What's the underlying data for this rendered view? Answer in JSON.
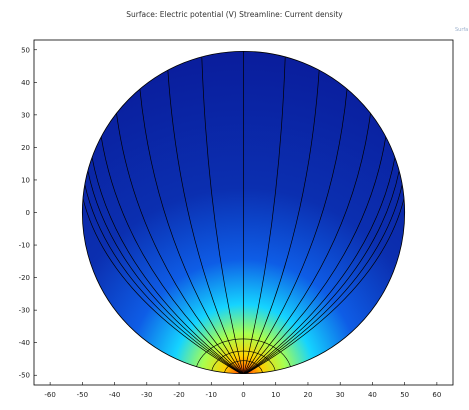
{
  "plot": {
    "title": "Surface: Electric potential (V)  Streamline: Current density",
    "legend_stub": "Surfa",
    "colors": {
      "domain_fill": "#0a1d9c",
      "frame": "#000000",
      "streamline": "#000000"
    }
  },
  "chart_data": {
    "type": "heatmap",
    "title": "Surface: Electric potential (V)  Streamline: Current density",
    "surface_field": "Electric potential (V)",
    "streamline_field": "Current density",
    "domain": {
      "shape": "circle",
      "center": [
        0,
        0
      ],
      "radius": 50
    },
    "source": {
      "x": 0,
      "y": -50,
      "note": "hot spot at bottom of circle"
    },
    "xlim": [
      -65,
      65
    ],
    "ylim": [
      -53,
      53
    ],
    "x_ticks": [
      -60,
      -50,
      -40,
      -30,
      -20,
      -10,
      0,
      10,
      20,
      30,
      40,
      50,
      60
    ],
    "y_ticks": [
      50,
      40,
      30,
      20,
      10,
      0,
      -10,
      -20,
      -30,
      -40,
      -50
    ],
    "x_tick_labels": [
      "-60",
      "-50",
      "-40",
      "-30",
      "-20",
      "-10",
      "0",
      "10",
      "20",
      "30",
      "40",
      "50",
      "60"
    ],
    "y_tick_labels": [
      "50",
      "40",
      "30",
      "20",
      "10",
      "0",
      "-10",
      "-20",
      "-30",
      "-40",
      "-50"
    ],
    "streamline_angles_deg": [
      5,
      10,
      15,
      20,
      28,
      38,
      50,
      62,
      75,
      90,
      105,
      118,
      130,
      142,
      152,
      160,
      165,
      170,
      175
    ],
    "grid": false
  }
}
